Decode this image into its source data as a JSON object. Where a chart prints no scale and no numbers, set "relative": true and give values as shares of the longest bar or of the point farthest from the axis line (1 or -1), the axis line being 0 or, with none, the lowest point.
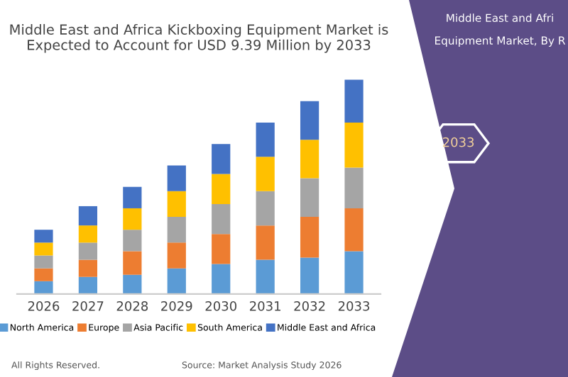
{
  "chart_data": {
    "type": "bar",
    "stacked": true,
    "relative": true,
    "title": "Middle East and Africa Kickboxing Equipment Market is Expected to Account for USD 9.39 Million by 2033",
    "categories": [
      "2026",
      "2027",
      "2028",
      "2029",
      "2030",
      "2031",
      "2032",
      "2033"
    ],
    "series": [
      {
        "name": "North America",
        "color": "#5b9bd5",
        "values": [
          0.06,
          0.08,
          0.09,
          0.12,
          0.14,
          0.16,
          0.17,
          0.2
        ]
      },
      {
        "name": "Europe",
        "color": "#ed7d31",
        "values": [
          0.06,
          0.08,
          0.11,
          0.12,
          0.14,
          0.16,
          0.19,
          0.2
        ]
      },
      {
        "name": "Asia Pacific",
        "color": "#a5a5a5",
        "values": [
          0.06,
          0.08,
          0.1,
          0.12,
          0.14,
          0.16,
          0.18,
          0.19
        ]
      },
      {
        "name": "South America",
        "color": "#ffc000",
        "values": [
          0.06,
          0.08,
          0.1,
          0.12,
          0.14,
          0.16,
          0.18,
          0.21
        ]
      },
      {
        "name": "Middle East and Africa",
        "color": "#4472c4",
        "values": [
          0.06,
          0.09,
          0.1,
          0.12,
          0.14,
          0.16,
          0.18,
          0.2
        ]
      }
    ],
    "legend": "bottom",
    "grid": false,
    "annotations": [
      "Middle East and Afri",
      "Equipment Market, By R",
      "2033",
      "All Rights Reserved.",
      "Source: Market Analysis Study 2026"
    ]
  }
}
